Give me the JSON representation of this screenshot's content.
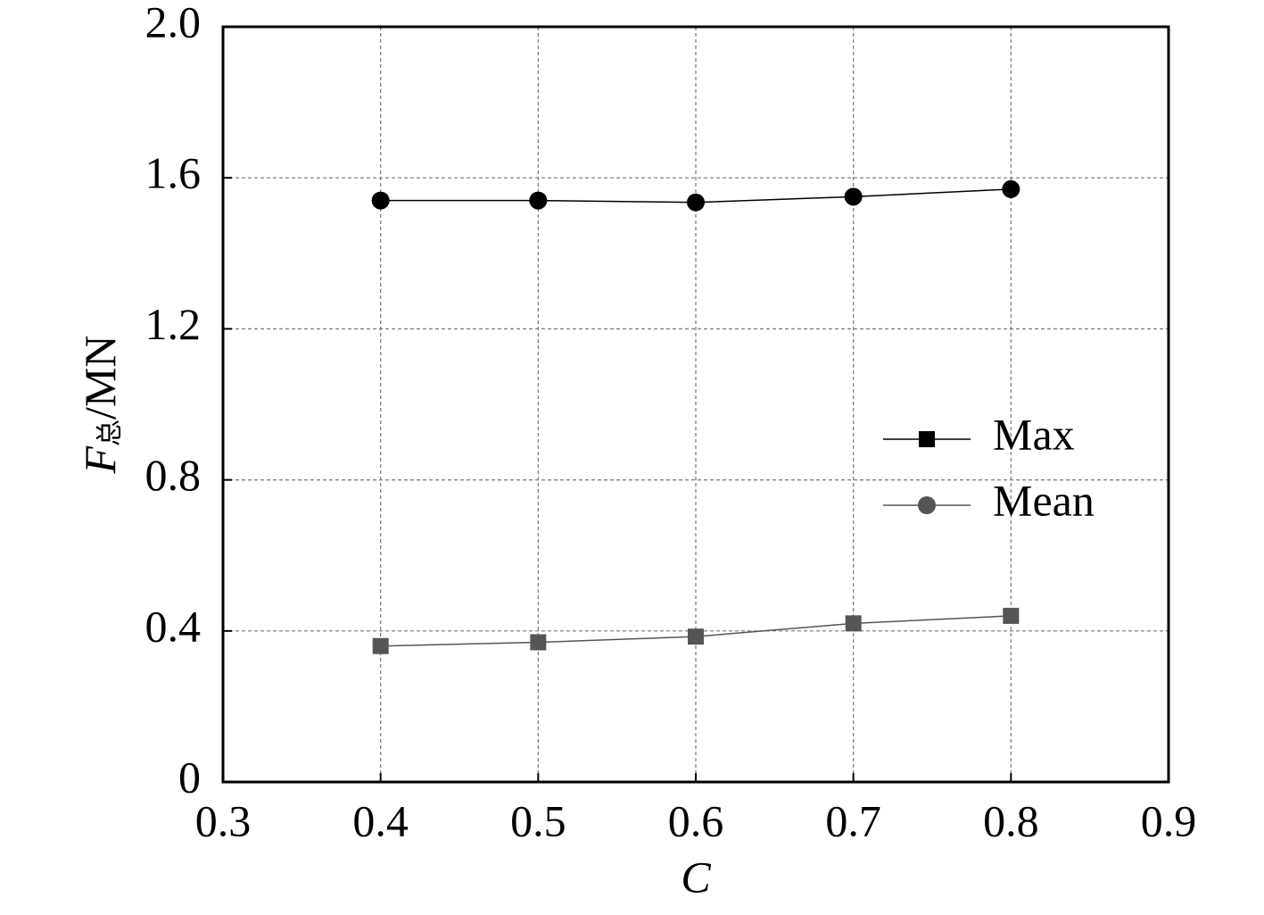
{
  "chart_data": {
    "type": "line",
    "xlabel": "C",
    "ylabel": {
      "symbol": "F",
      "subscript": "总",
      "unit": "/MN"
    },
    "x": [
      0.4,
      0.5,
      0.6,
      0.7,
      0.8
    ],
    "series": [
      {
        "name": "Max",
        "color": "#000000",
        "marker": "circle",
        "legend_marker": "square",
        "values": [
          1.54,
          1.54,
          1.535,
          1.55,
          1.57
        ]
      },
      {
        "name": "Mean",
        "color": "#555555",
        "marker": "square",
        "legend_marker": "circle",
        "values": [
          0.36,
          0.37,
          0.385,
          0.42,
          0.44
        ]
      }
    ],
    "xlim": [
      0.3,
      0.9
    ],
    "xticks": [
      0.3,
      0.4,
      0.5,
      0.6,
      0.7,
      0.8,
      0.9
    ],
    "ylim": [
      0,
      2
    ],
    "yticks": [
      0,
      0.4,
      0.8,
      1.2,
      1.6,
      {
        "value": 2,
        "label": "2.0"
      }
    ],
    "grid": true,
    "legend": "right"
  }
}
